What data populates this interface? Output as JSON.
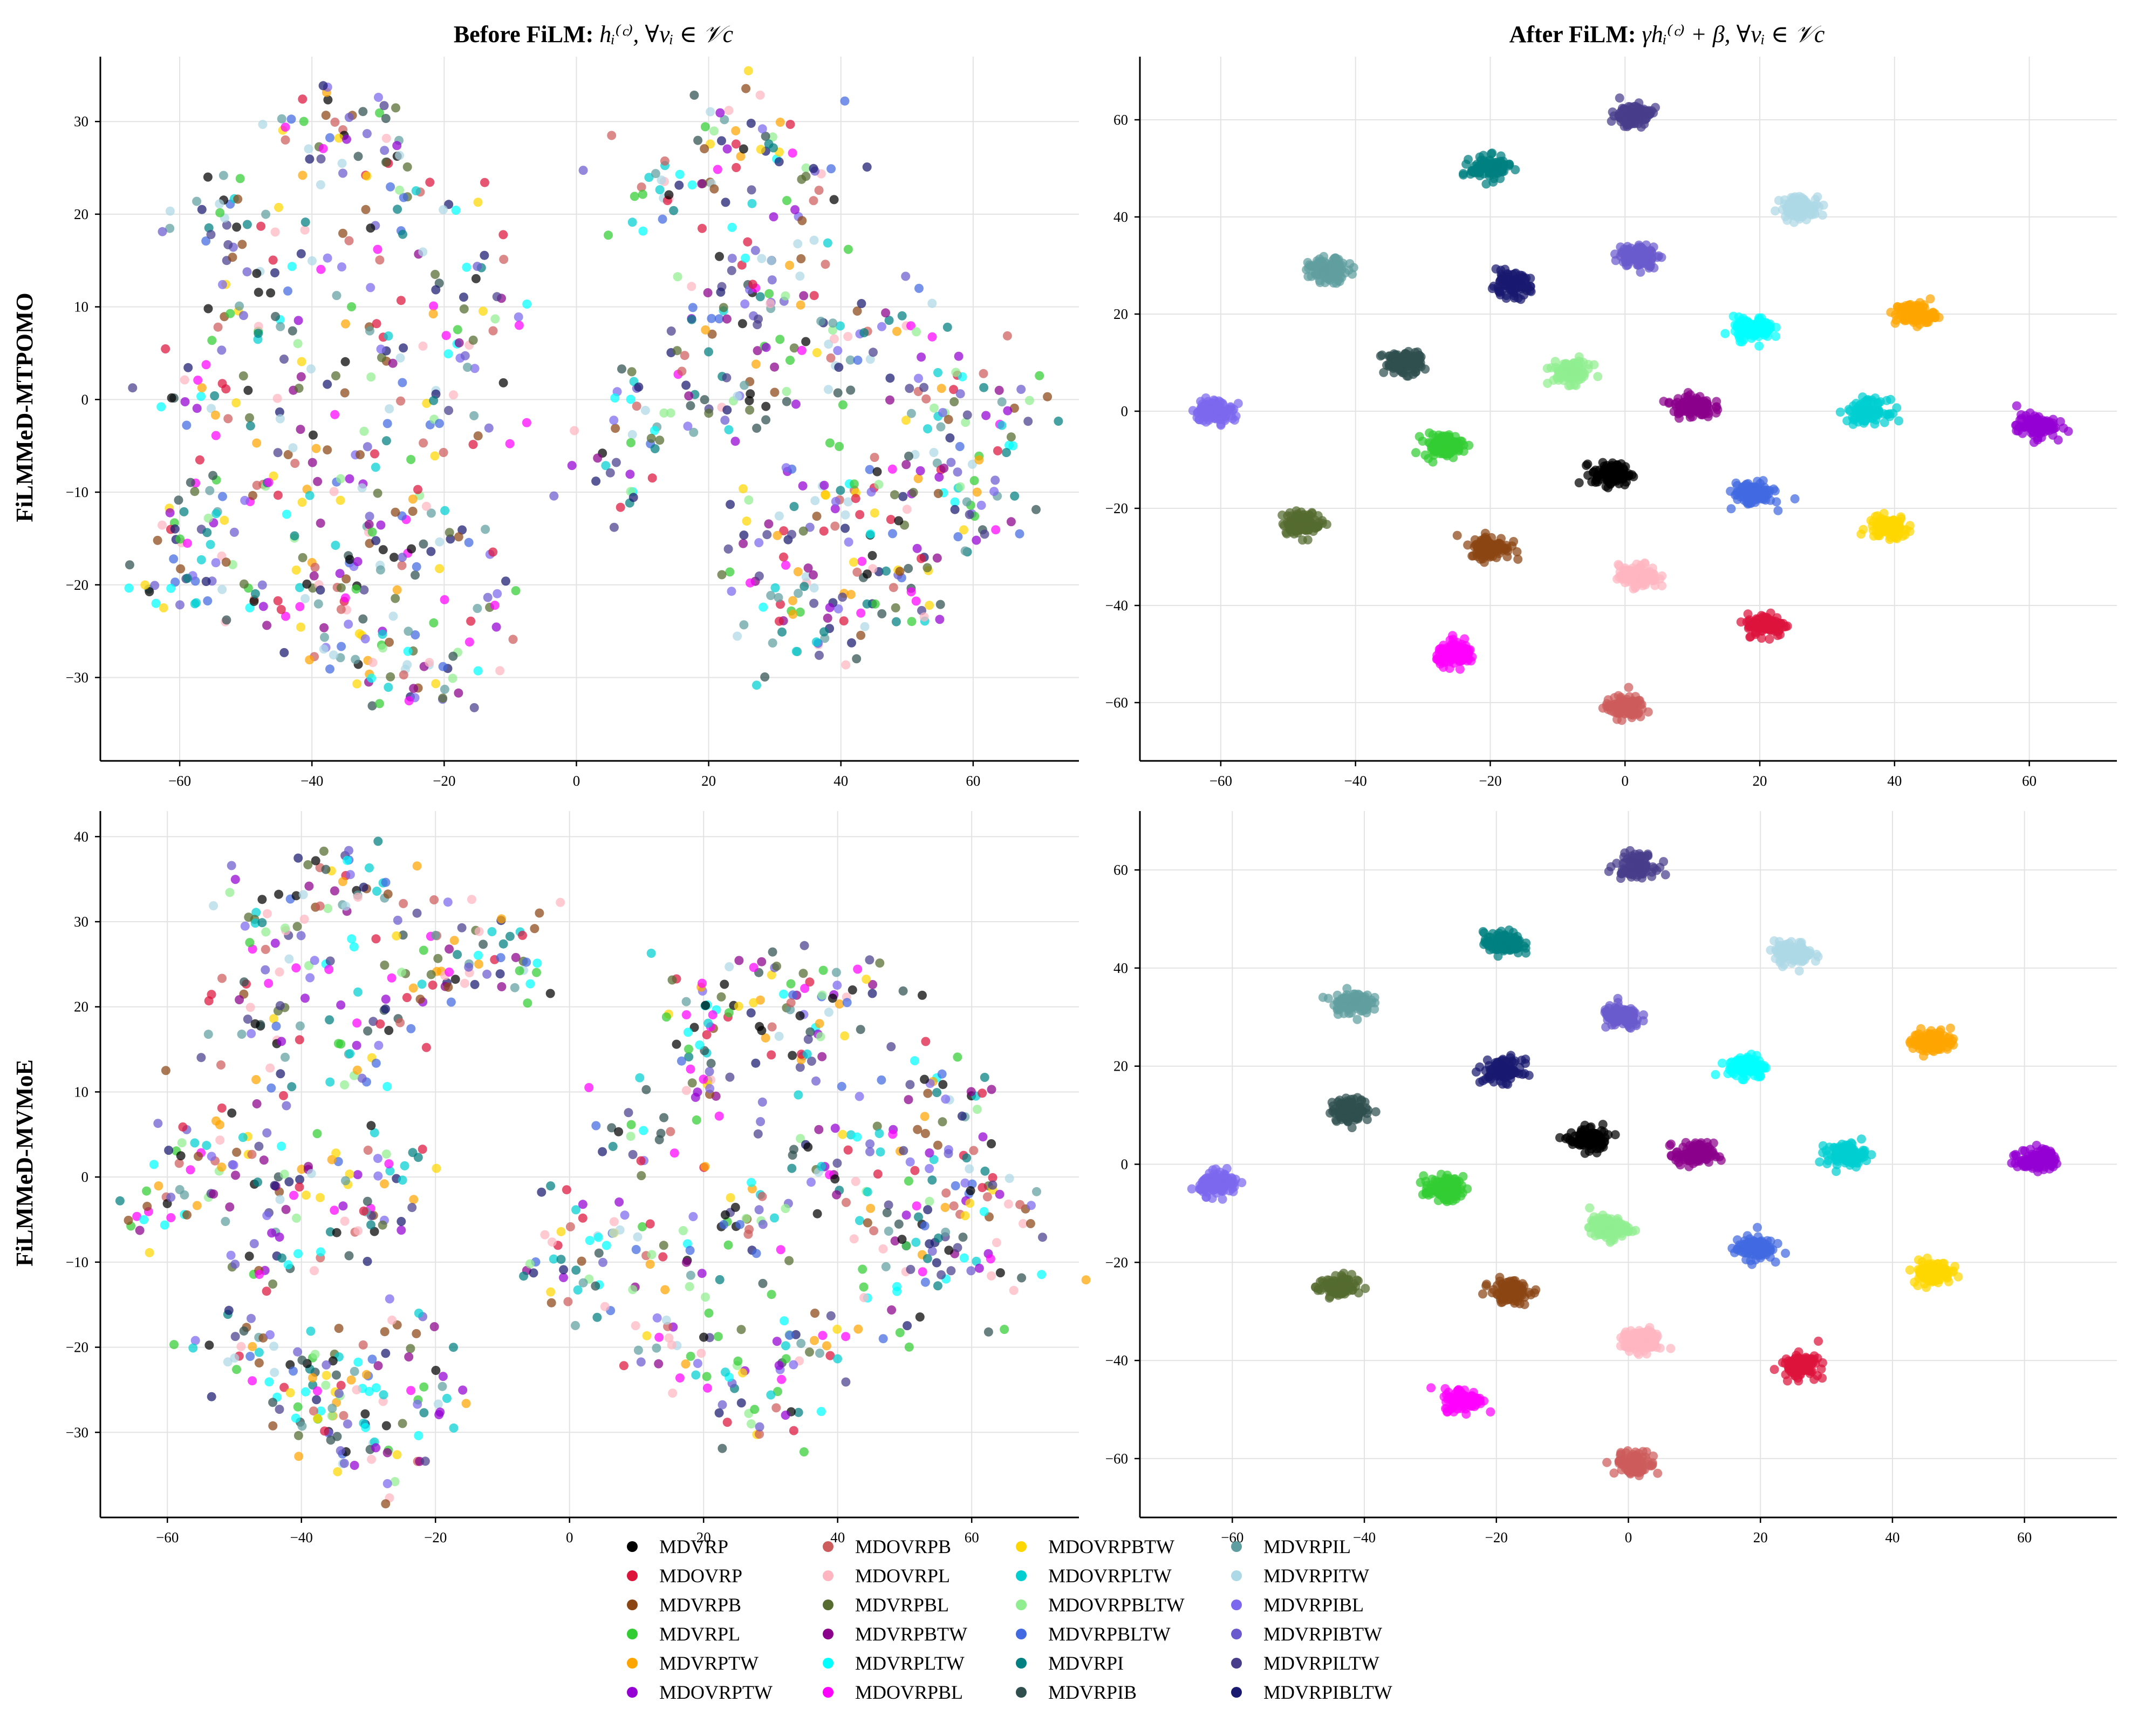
{
  "row_labels": [
    "FiLMMeD-MTPOMO",
    "FiLMMeD-MVMoE"
  ],
  "column_titles": {
    "before": {
      "prefix": "Before FiLM: ",
      "math": "hᵢ⁽ᶜ⁾, ∀vᵢ ∈ 𝒱c"
    },
    "after": {
      "prefix": "After FiLM: ",
      "math": "γhᵢ⁽ᶜ⁾ + β, ∀vᵢ ∈ 𝒱c"
    }
  },
  "variants": [
    {
      "name": "MDVRP",
      "color": "#000000"
    },
    {
      "name": "MDOVRP",
      "color": "#dc143c"
    },
    {
      "name": "MDVRPB",
      "color": "#8b4513"
    },
    {
      "name": "MDVRPL",
      "color": "#32cd32"
    },
    {
      "name": "MDVRPTW",
      "color": "#ffa500"
    },
    {
      "name": "MDOVRPTW",
      "color": "#9400d3"
    },
    {
      "name": "MDOVRPB",
      "color": "#cd5c5c"
    },
    {
      "name": "MDOVRPL",
      "color": "#ffb6c1"
    },
    {
      "name": "MDVRPBL",
      "color": "#556b2f"
    },
    {
      "name": "MDVRPBTW",
      "color": "#8b008b"
    },
    {
      "name": "MDVRPLTW",
      "color": "#00ffff"
    },
    {
      "name": "MDOVRPBL",
      "color": "#ff00ff"
    },
    {
      "name": "MDOVRPBTW",
      "color": "#ffd700"
    },
    {
      "name": "MDOVRPLTW",
      "color": "#00ced1"
    },
    {
      "name": "MDOVRPBLTW",
      "color": "#90ee90"
    },
    {
      "name": "MDVRPBLTW",
      "color": "#4169e1"
    },
    {
      "name": "MDVRPI",
      "color": "#008080"
    },
    {
      "name": "MDVRPIB",
      "color": "#2f4f4f"
    },
    {
      "name": "MDVRPIL",
      "color": "#5f9ea0"
    },
    {
      "name": "MDVRPITW",
      "color": "#add8e6"
    },
    {
      "name": "MDVRPIBL",
      "color": "#7b68ee"
    },
    {
      "name": "MDVRPIBTW",
      "color": "#6a5acd"
    },
    {
      "name": "MDVRPILTW",
      "color": "#483d8b"
    },
    {
      "name": "MDVRPIBLTW",
      "color": "#191970"
    }
  ],
  "chart_data": [
    {
      "type": "scatter",
      "panel": "FiLMMeD-MTPOMO before FiLM",
      "title": "Before FiLM",
      "xlim": [
        -72,
        76
      ],
      "ylim": [
        -39,
        37
      ],
      "xticks": [
        -60,
        -40,
        -20,
        0,
        20,
        40,
        60
      ],
      "yticks": [
        -30,
        -20,
        -10,
        0,
        10,
        20,
        30
      ],
      "grid": true,
      "mixed_regions": [
        {
          "points": [
            [
              -55,
              20
            ],
            [
              -48,
              17
            ],
            [
              -40,
              28
            ],
            [
              -30,
              28
            ],
            [
              -25,
              22
            ],
            [
              -35,
              15
            ],
            [
              -50,
              10
            ],
            [
              -57,
              2
            ],
            [
              -45,
              3
            ],
            [
              -30,
              5
            ],
            [
              -20,
              8
            ],
            [
              -13,
              12
            ],
            [
              -18,
              -2
            ],
            [
              -30,
              -5
            ],
            [
              -45,
              -8
            ],
            [
              -55,
              -12
            ],
            [
              -60,
              -18
            ],
            [
              -48,
              -20
            ],
            [
              -35,
              -18
            ],
            [
              -25,
              -15
            ],
            [
              -15,
              -22
            ],
            [
              -22,
              -30
            ],
            [
              -32,
              -28
            ],
            [
              -38,
              -22
            ]
          ],
          "spread": 3.0,
          "n": 520,
          "palette": "mixed-a"
        },
        {
          "points": [
            [
              15,
              22
            ],
            [
              25,
              28
            ],
            [
              35,
              22
            ],
            [
              30,
              12
            ],
            [
              20,
              10
            ],
            [
              10,
              -2
            ],
            [
              5,
              -6
            ],
            [
              25,
              0
            ],
            [
              38,
              5
            ],
            [
              50,
              10
            ],
            [
              55,
              2
            ],
            [
              65,
              -2
            ],
            [
              60,
              -12
            ],
            [
              45,
              -10
            ],
            [
              35,
              -10
            ],
            [
              28,
              -16
            ],
            [
              40,
              -22
            ],
            [
              32,
              -26
            ],
            [
              48,
              -20
            ],
            [
              55,
              -6
            ]
          ],
          "spread": 3.0,
          "n": 520,
          "palette": "mixed-b"
        }
      ]
    },
    {
      "type": "scatter",
      "panel": "FiLMMeD-MTPOMO after FiLM",
      "title": "After FiLM",
      "xlim": [
        -72,
        73
      ],
      "ylim": [
        -72,
        73
      ],
      "xticks": [
        -60,
        -40,
        -20,
        0,
        20,
        40,
        60
      ],
      "yticks": [
        -60,
        -40,
        -20,
        0,
        20,
        40,
        60
      ],
      "grid": true,
      "clusters": [
        {
          "variant": "MDVRP",
          "x": -2,
          "y": -13
        },
        {
          "variant": "MDOVRP",
          "x": 21,
          "y": -44
        },
        {
          "variant": "MDVRPB",
          "x": -20,
          "y": -28
        },
        {
          "variant": "MDVRPL",
          "x": -27,
          "y": -7
        },
        {
          "variant": "MDVRPTW",
          "x": 43,
          "y": 20
        },
        {
          "variant": "MDOVRPTW",
          "x": 61,
          "y": -3
        },
        {
          "variant": "MDOVRPB",
          "x": 0,
          "y": -61
        },
        {
          "variant": "MDOVRPL",
          "x": 2,
          "y": -34
        },
        {
          "variant": "MDVRPBL",
          "x": -48,
          "y": -23
        },
        {
          "variant": "MDVRPBTW",
          "x": 10,
          "y": 1
        },
        {
          "variant": "MDVRPLTW",
          "x": 19,
          "y": 17
        },
        {
          "variant": "MDOVRPBL",
          "x": -25,
          "y": -50
        },
        {
          "variant": "MDOVRPBTW",
          "x": 39,
          "y": -24
        },
        {
          "variant": "MDOVRPLTW",
          "x": 36,
          "y": 0
        },
        {
          "variant": "MDOVRPBLTW",
          "x": -8,
          "y": 8
        },
        {
          "variant": "MDVRPBLTW",
          "x": 19,
          "y": -17
        },
        {
          "variant": "MDVRPI",
          "x": -20,
          "y": 50
        },
        {
          "variant": "MDVRPIB",
          "x": -33,
          "y": 10
        },
        {
          "variant": "MDVRPIL",
          "x": -44,
          "y": 29
        },
        {
          "variant": "MDVRPITW",
          "x": 26,
          "y": 42
        },
        {
          "variant": "MDVRPIBL",
          "x": -61,
          "y": 0
        },
        {
          "variant": "MDVRPIBTW",
          "x": 2,
          "y": 32
        },
        {
          "variant": "MDVRPILTW",
          "x": 1,
          "y": 61
        },
        {
          "variant": "MDVRPIBLTW",
          "x": -17,
          "y": 26
        }
      ]
    },
    {
      "type": "scatter",
      "panel": "FiLMMeD-MVMoE before FiLM",
      "title": "",
      "xlim": [
        -70,
        76
      ],
      "ylim": [
        -40,
        43
      ],
      "xticks": [
        -60,
        -40,
        -20,
        0,
        20,
        40,
        60
      ],
      "yticks": [
        -30,
        -20,
        -10,
        0,
        10,
        20,
        30,
        40
      ],
      "grid": true,
      "mixed_regions": [
        {
          "points": [
            [
              -45,
              30
            ],
            [
              -35,
              35
            ],
            [
              -25,
              32
            ],
            [
              -20,
              25
            ],
            [
              -28,
              20
            ],
            [
              -40,
              22
            ],
            [
              -47,
              18
            ],
            [
              -15,
              28
            ],
            [
              -8,
              26
            ],
            [
              -35,
              10
            ],
            [
              -55,
              5
            ],
            [
              -48,
              2
            ],
            [
              -40,
              -2
            ],
            [
              -28,
              0
            ],
            [
              -30,
              -5
            ],
            [
              -60,
              -3
            ],
            [
              -45,
              -10
            ],
            [
              -50,
              -20
            ],
            [
              -42,
              -22
            ],
            [
              -35,
              -25
            ],
            [
              -28,
              -20
            ],
            [
              -22,
              -25
            ],
            [
              -30,
              -32
            ],
            [
              -38,
              -30
            ]
          ],
          "spread": 3.0,
          "n": 520,
          "palette": "mixed-a"
        },
        {
          "points": [
            [
              20,
              20
            ],
            [
              30,
              22
            ],
            [
              40,
              22
            ],
            [
              35,
              15
            ],
            [
              22,
              12
            ],
            [
              10,
              5
            ],
            [
              5,
              -5
            ],
            [
              0,
              -12
            ],
            [
              15,
              -10
            ],
            [
              25,
              -5
            ],
            [
              35,
              0
            ],
            [
              45,
              5
            ],
            [
              55,
              10
            ],
            [
              60,
              0
            ],
            [
              65,
              -8
            ],
            [
              55,
              -12
            ],
            [
              45,
              -18
            ],
            [
              35,
              -20
            ],
            [
              25,
              -22
            ],
            [
              30,
              -28
            ],
            [
              15,
              -20
            ],
            [
              50,
              -5
            ]
          ],
          "spread": 3.0,
          "n": 520,
          "palette": "mixed-b"
        }
      ]
    },
    {
      "type": "scatter",
      "panel": "FiLMMeD-MVMoE after FiLM",
      "title": "",
      "xlim": [
        -74,
        74
      ],
      "ylim": [
        -72,
        72
      ],
      "xticks": [
        -60,
        -40,
        -20,
        0,
        20,
        40,
        60
      ],
      "yticks": [
        -60,
        -40,
        -20,
        0,
        20,
        40,
        60
      ],
      "grid": true,
      "clusters": [
        {
          "variant": "MDVRP",
          "x": -6,
          "y": 5
        },
        {
          "variant": "MDOVRP",
          "x": 26,
          "y": -41
        },
        {
          "variant": "MDVRPB",
          "x": -18,
          "y": -26
        },
        {
          "variant": "MDVRPL",
          "x": -28,
          "y": -5
        },
        {
          "variant": "MDVRPTW",
          "x": 46,
          "y": 25
        },
        {
          "variant": "MDOVRPTW",
          "x": 62,
          "y": 1
        },
        {
          "variant": "MDOVRPB",
          "x": 1,
          "y": -61
        },
        {
          "variant": "MDOVRPL",
          "x": 2,
          "y": -36
        },
        {
          "variant": "MDVRPBL",
          "x": -44,
          "y": -25
        },
        {
          "variant": "MDVRPBTW",
          "x": 10,
          "y": 2
        },
        {
          "variant": "MDVRPLTW",
          "x": 18,
          "y": 20
        },
        {
          "variant": "MDOVRPBL",
          "x": -25,
          "y": -48
        },
        {
          "variant": "MDOVRPBTW",
          "x": 46,
          "y": -22
        },
        {
          "variant": "MDOVRPLTW",
          "x": 33,
          "y": 2
        },
        {
          "variant": "MDOVRPBLTW",
          "x": -3,
          "y": -13
        },
        {
          "variant": "MDVRPBLTW",
          "x": 19,
          "y": -17
        },
        {
          "variant": "MDVRPI",
          "x": -19,
          "y": 45
        },
        {
          "variant": "MDVRPIB",
          "x": -42,
          "y": 11
        },
        {
          "variant": "MDVRPIL",
          "x": -42,
          "y": 33
        },
        {
          "variant": "MDVRPITW",
          "x": 25,
          "y": 43
        },
        {
          "variant": "MDVRPIBL",
          "x": -62,
          "y": -4
        },
        {
          "variant": "MDVRPIBTW",
          "x": -1,
          "y": 30
        },
        {
          "variant": "MDVRPILTW",
          "x": 1,
          "y": 61
        },
        {
          "variant": "MDVRPIBLTW",
          "x": -19,
          "y": 19
        }
      ]
    }
  ]
}
